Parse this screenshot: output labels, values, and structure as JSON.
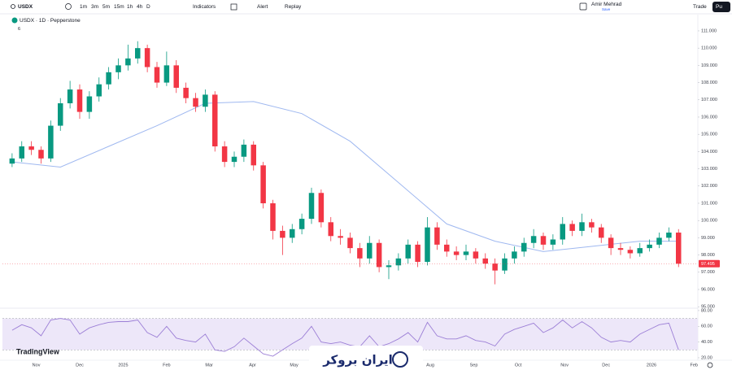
{
  "toolbar": {
    "symbol": "USDX",
    "intervals": [
      "1m",
      "3m",
      "5m",
      "15m",
      "1h",
      "4h",
      "D"
    ],
    "indicators": "Indicators",
    "alert": "Alert",
    "replay": "Replay",
    "user": "Amir Mehrad",
    "save": "Save",
    "trade": "Trade",
    "publish": "Pu"
  },
  "legend": {
    "title": "USDX · 1D · Pepperstone",
    "count": "6"
  },
  "watermark": "TradingView",
  "broker_logo": "ایران بروکر",
  "chart_data": [
    {
      "type": "candlestick",
      "open": [
        103.3,
        103.6,
        104.3,
        104.1,
        103.6,
        105.5,
        106.8,
        107.6,
        106.3,
        107.2,
        107.9,
        108.6,
        109.0,
        109.4,
        110.0,
        108.9,
        108.0,
        109.0,
        107.7,
        107.1,
        106.6,
        107.3,
        104.3,
        103.4,
        103.7,
        104.4,
        103.2,
        101.0,
        99.4,
        99.0,
        99.5,
        100.1,
        101.6,
        99.9,
        99.1,
        99.0,
        98.4,
        97.8,
        98.7,
        97.3,
        97.4,
        97.8,
        98.6,
        97.6,
        99.6,
        98.6,
        98.2,
        98.0,
        98.2,
        97.8,
        97.5,
        97.1,
        97.8,
        98.2,
        98.7,
        99.1,
        98.6,
        98.9,
        99.8,
        99.4,
        99.9,
        99.6,
        99.0,
        98.4,
        98.3,
        98.1,
        98.4,
        98.6,
        99.0,
        99.3
      ],
      "high": [
        103.9,
        104.6,
        104.6,
        104.3,
        105.8,
        107.1,
        108.1,
        107.9,
        107.5,
        108.3,
        108.9,
        109.4,
        110.2,
        110.4,
        110.2,
        109.2,
        109.8,
        109.3,
        108.0,
        107.4,
        107.6,
        107.5,
        104.6,
        104.0,
        104.7,
        104.6,
        103.4,
        101.2,
        99.7,
        99.8,
        100.4,
        101.9,
        101.8,
        100.2,
        99.5,
        99.3,
        98.7,
        99.1,
        98.9,
        97.7,
        98.1,
        98.9,
        98.8,
        100.2,
        99.9,
        98.9,
        98.5,
        98.6,
        98.4,
        98.1,
        97.8,
        98.1,
        98.5,
        99.0,
        99.5,
        99.3,
        99.2,
        100.2,
        100.0,
        100.4,
        100.1,
        99.8,
        99.2,
        98.7,
        98.5,
        98.7,
        98.9,
        99.3,
        99.6,
        99.5
      ],
      "low": [
        103.1,
        103.4,
        103.8,
        103.3,
        103.4,
        105.2,
        106.5,
        105.9,
        105.9,
        106.9,
        107.6,
        108.2,
        108.7,
        109.1,
        108.6,
        107.7,
        107.8,
        107.4,
        106.8,
        106.3,
        106.3,
        104.0,
        103.1,
        103.1,
        103.4,
        102.9,
        100.7,
        98.9,
        98.0,
        98.7,
        99.2,
        99.8,
        99.6,
        98.8,
        98.6,
        98.1,
        97.3,
        97.5,
        97.0,
        96.6,
        97.1,
        97.5,
        97.3,
        97.4,
        98.3,
        97.9,
        97.7,
        97.7,
        97.5,
        97.2,
        96.3,
        96.9,
        97.5,
        97.9,
        98.4,
        98.3,
        98.3,
        98.6,
        99.1,
        99.1,
        99.3,
        98.7,
        98.0,
        98.0,
        97.8,
        97.9,
        98.2,
        98.4,
        98.8,
        97.3
      ],
      "close": [
        103.6,
        104.3,
        104.1,
        103.6,
        105.5,
        106.8,
        107.6,
        106.3,
        107.2,
        107.9,
        108.6,
        109.0,
        109.4,
        110.0,
        108.9,
        108.0,
        109.0,
        107.7,
        107.1,
        106.6,
        107.3,
        104.3,
        103.4,
        103.7,
        104.4,
        103.2,
        101.0,
        99.4,
        99.0,
        99.5,
        100.1,
        101.6,
        99.9,
        99.1,
        99.0,
        98.4,
        97.8,
        98.7,
        97.3,
        97.4,
        97.8,
        98.6,
        97.6,
        99.6,
        98.6,
        98.2,
        98.0,
        98.2,
        97.8,
        97.5,
        97.1,
        97.8,
        98.2,
        98.7,
        99.1,
        98.6,
        98.9,
        99.8,
        99.4,
        99.9,
        99.6,
        99.0,
        98.4,
        98.3,
        98.1,
        98.4,
        98.6,
        99.0,
        99.3,
        97.495
      ],
      "up_color": "#089981",
      "down_color": "#f23645",
      "ma": {
        "color": "#9fb8f0",
        "x": [
          0,
          5,
          10,
          15,
          20,
          25,
          30,
          35,
          40,
          45,
          50,
          55,
          60,
          65,
          69
        ],
        "values": [
          103.4,
          103.1,
          104.3,
          105.5,
          106.8,
          106.9,
          106.2,
          104.6,
          102.2,
          99.8,
          98.8,
          98.2,
          98.5,
          98.8,
          98.8
        ]
      },
      "xlim": [
        -1,
        71
      ],
      "ylim": [
        95,
        111.8
      ],
      "yticks": [
        {
          "value": 111,
          "label": "111.000"
        },
        {
          "value": 110,
          "label": "110.000"
        },
        {
          "value": 109,
          "label": "109.000"
        },
        {
          "value": 108,
          "label": "108.000"
        },
        {
          "value": 107,
          "label": "107.000"
        },
        {
          "value": 106,
          "label": "106.000"
        },
        {
          "value": 105,
          "label": "105.000"
        },
        {
          "value": 104,
          "label": "104.000"
        },
        {
          "value": 103,
          "label": "103.000"
        },
        {
          "value": 102,
          "label": "102.000"
        },
        {
          "value": 101,
          "label": "101.000"
        },
        {
          "value": 100,
          "label": "100.000"
        },
        {
          "value": 99,
          "label": "99.000"
        },
        {
          "value": 98,
          "label": "98.000"
        },
        {
          "value": 97,
          "label": "97.000"
        },
        {
          "value": 96,
          "label": "96.000"
        },
        {
          "value": 95,
          "label": "95.000"
        }
      ],
      "xticks": [
        {
          "value": 2.5,
          "label": "Nov"
        },
        {
          "value": 7.0,
          "label": "Dec"
        },
        {
          "value": 11.5,
          "label": "2025"
        },
        {
          "value": 16.0,
          "label": "Feb"
        },
        {
          "value": 20.4,
          "label": "Mar"
        },
        {
          "value": 24.9,
          "label": "Apr"
        },
        {
          "value": 29.2,
          "label": "May"
        },
        {
          "value": 43.3,
          "label": "Aug"
        },
        {
          "value": 47.8,
          "label": "Sep"
        },
        {
          "value": 52.4,
          "label": "Oct"
        },
        {
          "value": 57.2,
          "label": "Nov"
        },
        {
          "value": 61.5,
          "label": "Dec"
        },
        {
          "value": 66.2,
          "label": "2026"
        },
        {
          "value": 70.6,
          "label": "Feb"
        }
      ]
    },
    {
      "type": "line",
      "name": "RSI",
      "color": "#9c7fd6",
      "values": [
        55,
        62,
        58,
        48,
        68,
        70,
        68,
        50,
        58,
        62,
        65,
        66,
        66,
        68,
        52,
        46,
        60,
        45,
        42,
        40,
        50,
        30,
        28,
        34,
        45,
        35,
        25,
        22,
        30,
        38,
        45,
        60,
        40,
        38,
        40,
        36,
        34,
        48,
        34,
        38,
        44,
        52,
        40,
        65,
        48,
        44,
        44,
        48,
        42,
        40,
        35,
        50,
        56,
        60,
        64,
        52,
        58,
        68,
        58,
        66,
        58,
        46,
        40,
        42,
        40,
        50,
        56,
        62,
        64,
        30
      ],
      "bands": [
        30,
        70
      ],
      "band_color": "#ede7f9",
      "xlim": [
        -1,
        71
      ],
      "ylim": [
        18,
        82
      ],
      "yticks": [
        {
          "value": 80,
          "label": "80.00"
        },
        {
          "value": 60,
          "label": "60.00"
        },
        {
          "value": 40,
          "label": "40.00"
        },
        {
          "value": 20,
          "label": "20.00"
        }
      ]
    }
  ]
}
